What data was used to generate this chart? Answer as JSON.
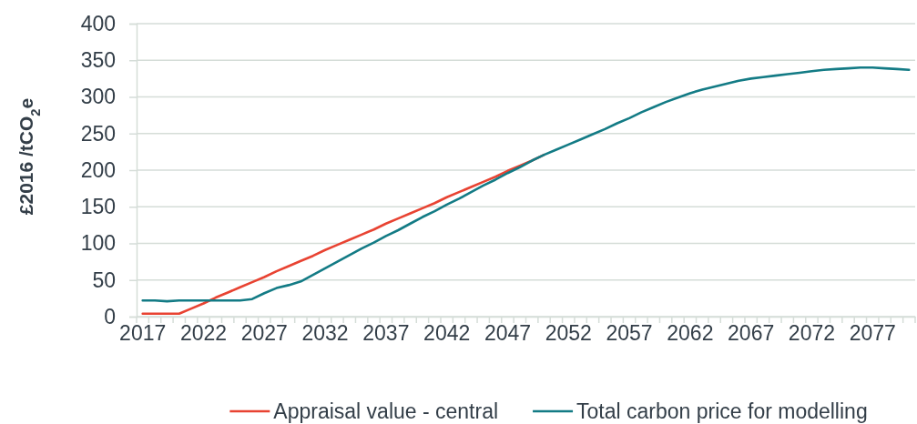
{
  "chart_data": {
    "type": "line",
    "ylabel": "£2016 /tCO$_{2}$e",
    "categories": [
      "2017",
      null,
      null,
      null,
      null,
      "2022",
      null,
      null,
      null,
      null,
      "2027",
      null,
      null,
      null,
      null,
      "2032",
      null,
      null,
      null,
      null,
      "2037",
      null,
      null,
      null,
      null,
      "2042",
      null,
      null,
      null,
      null,
      "2047",
      null,
      null,
      null,
      null,
      "2052",
      null,
      null,
      null,
      null,
      "2057",
      null,
      null,
      null,
      null,
      "2062",
      null,
      null,
      null,
      null,
      "2067",
      null,
      null,
      null,
      null,
      "2072",
      null,
      null,
      null,
      null,
      "2077",
      null,
      null,
      null
    ],
    "series": [
      {
        "name": "Appraisal value - central",
        "color": "#e84332",
        "values": [
          4,
          4,
          4,
          4,
          11,
          18,
          26,
          33,
          40,
          47,
          54,
          62,
          69,
          76,
          83,
          91,
          98,
          105,
          112,
          119,
          127,
          134,
          141,
          148,
          155,
          163,
          170,
          177,
          184,
          191,
          199,
          206,
          213,
          221,
          null,
          null,
          null,
          null,
          null,
          null,
          null,
          null,
          null,
          null,
          null,
          null,
          null,
          null,
          null,
          null,
          null,
          null,
          null,
          null,
          null,
          null,
          null,
          null,
          null,
          null,
          null,
          null,
          null,
          null
        ]
      },
      {
        "name": "Total carbon price for modelling",
        "color": "#137b85",
        "values": [
          22,
          22,
          21,
          22,
          22,
          22,
          22,
          22,
          22,
          24,
          32,
          39,
          43,
          48,
          57,
          66,
          75,
          84,
          93,
          101,
          110,
          118,
          127,
          136,
          144,
          153,
          161,
          170,
          179,
          187,
          196,
          204,
          213,
          221,
          228,
          235,
          242,
          249,
          256,
          264,
          271,
          279,
          286,
          293,
          299,
          305,
          310,
          314,
          318,
          322,
          325,
          327,
          329,
          331,
          333,
          335,
          337,
          338,
          339,
          340,
          340,
          339,
          338,
          337
        ]
      }
    ],
    "ylim": [
      0,
      400
    ],
    "yticks": [
      0,
      50,
      100,
      150,
      200,
      250,
      300,
      350,
      400
    ],
    "grid": "y",
    "legend": "bottom"
  }
}
